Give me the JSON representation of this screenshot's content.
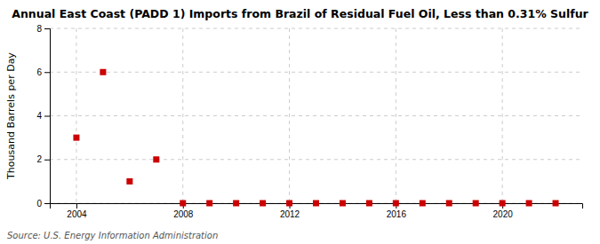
{
  "chart_data": {
    "type": "scatter",
    "title": "Annual East Coast (PADD 1) Imports from Brazil of Residual Fuel Oil, Less than 0.31% Sulfur",
    "ylabel": "Thousand Barrels per Day",
    "source": "Source: U.S. Energy Information Administration",
    "x": [
      2004,
      2005,
      2006,
      2007,
      2008,
      2009,
      2010,
      2011,
      2012,
      2013,
      2014,
      2015,
      2016,
      2017,
      2018,
      2019,
      2020,
      2021,
      2022
    ],
    "values": [
      3.0,
      6.0,
      1.0,
      2.0,
      0.0,
      0.0,
      0.0,
      0.0,
      0.0,
      0.0,
      0.0,
      0.0,
      0.0,
      0.0,
      0.0,
      0.0,
      0.0,
      0.0,
      0.0
    ],
    "color": "#cc0000",
    "marker": "square",
    "xlim": [
      2003.0,
      2023.0
    ],
    "ylim": [
      0,
      8
    ],
    "xticks": [
      2004,
      2008,
      2012,
      2016,
      2020
    ],
    "yticks": [
      0,
      2,
      4,
      6,
      8
    ],
    "grid": true
  }
}
